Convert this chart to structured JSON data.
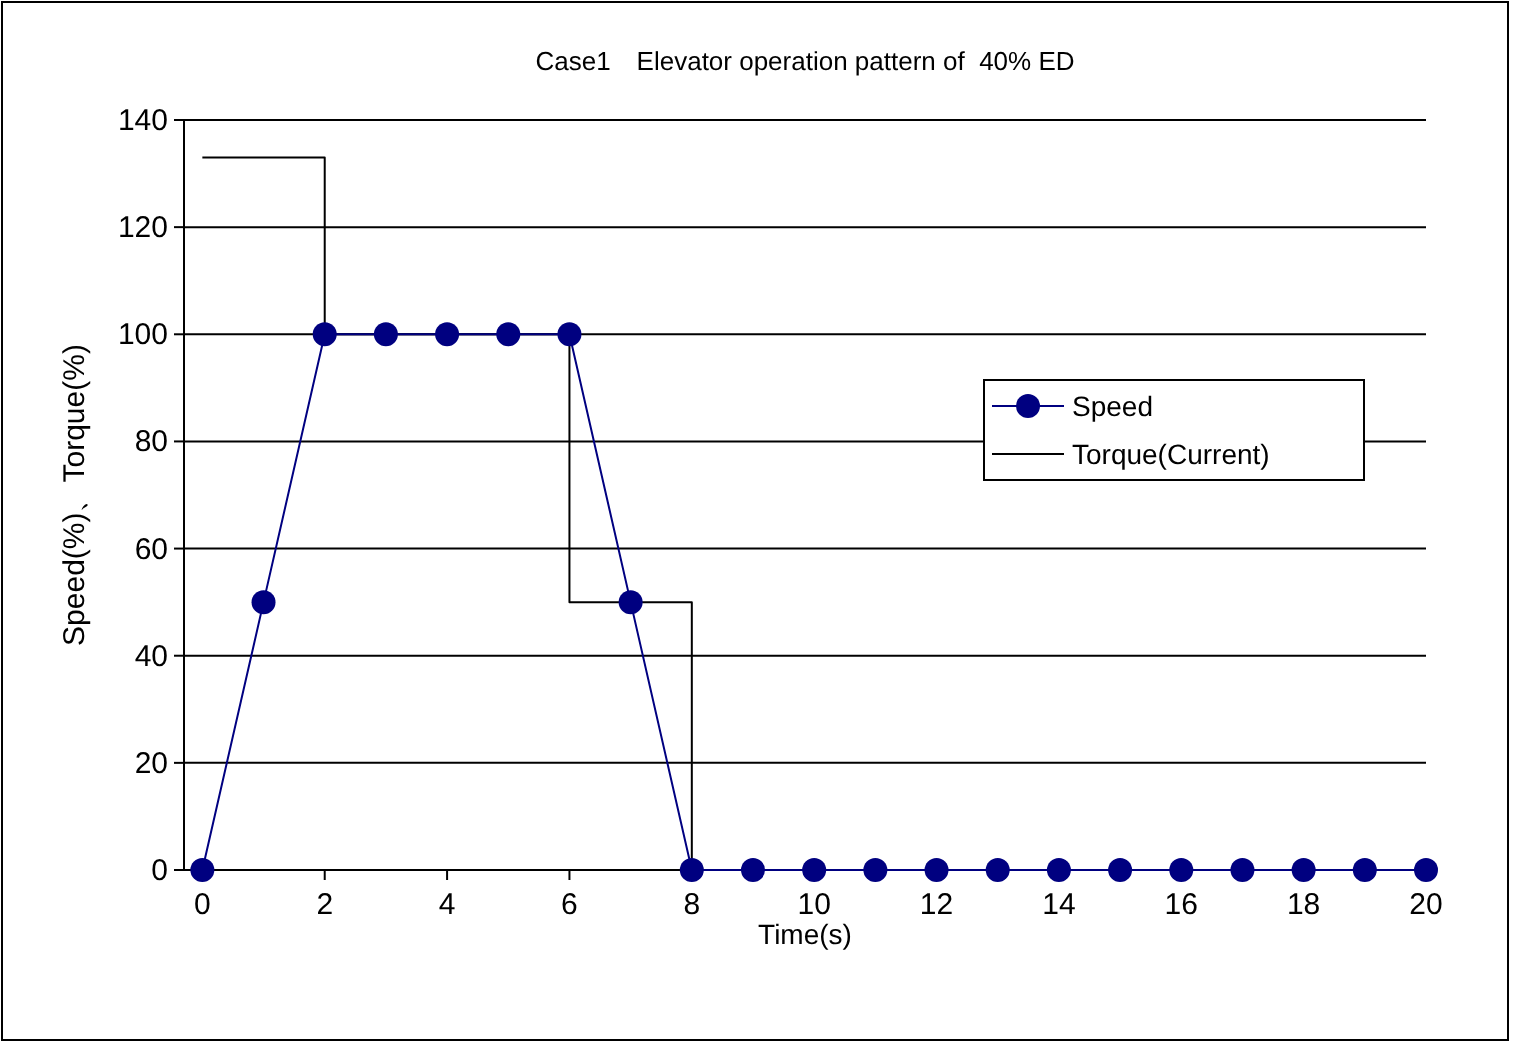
{
  "chart_data": {
    "type": "line",
    "title": "Case1　Elevator operation pattern of  40% ED",
    "xlabel": "Time(s)",
    "ylabel": "Speed(%)、Torque(%)",
    "xlim": [
      -0.3,
      20
    ],
    "xticks": [
      0,
      2,
      4,
      6,
      8,
      10,
      12,
      14,
      16,
      18,
      20
    ],
    "ylim": [
      0,
      140
    ],
    "yticks": [
      0,
      20,
      40,
      60,
      80,
      100,
      120,
      140
    ],
    "grid": "y",
    "legend": "right",
    "series": [
      {
        "name": "Speed",
        "color": "#000080",
        "marker": "circle",
        "x": [
          0,
          1,
          2,
          3,
          4,
          5,
          6,
          7,
          8,
          9,
          10,
          11,
          12,
          13,
          14,
          15,
          16,
          17,
          18,
          19,
          20
        ],
        "values": [
          0,
          50,
          100,
          100,
          100,
          100,
          100,
          50,
          0,
          0,
          0,
          0,
          0,
          0,
          0,
          0,
          0,
          0,
          0,
          0,
          0
        ]
      },
      {
        "name": "Torque(Current)",
        "color": "#000000",
        "marker": "none",
        "x": [
          0,
          1,
          2,
          2,
          6,
          6,
          8,
          8
        ],
        "values": [
          133,
          133,
          133,
          100,
          100,
          50,
          50,
          0
        ]
      }
    ]
  }
}
